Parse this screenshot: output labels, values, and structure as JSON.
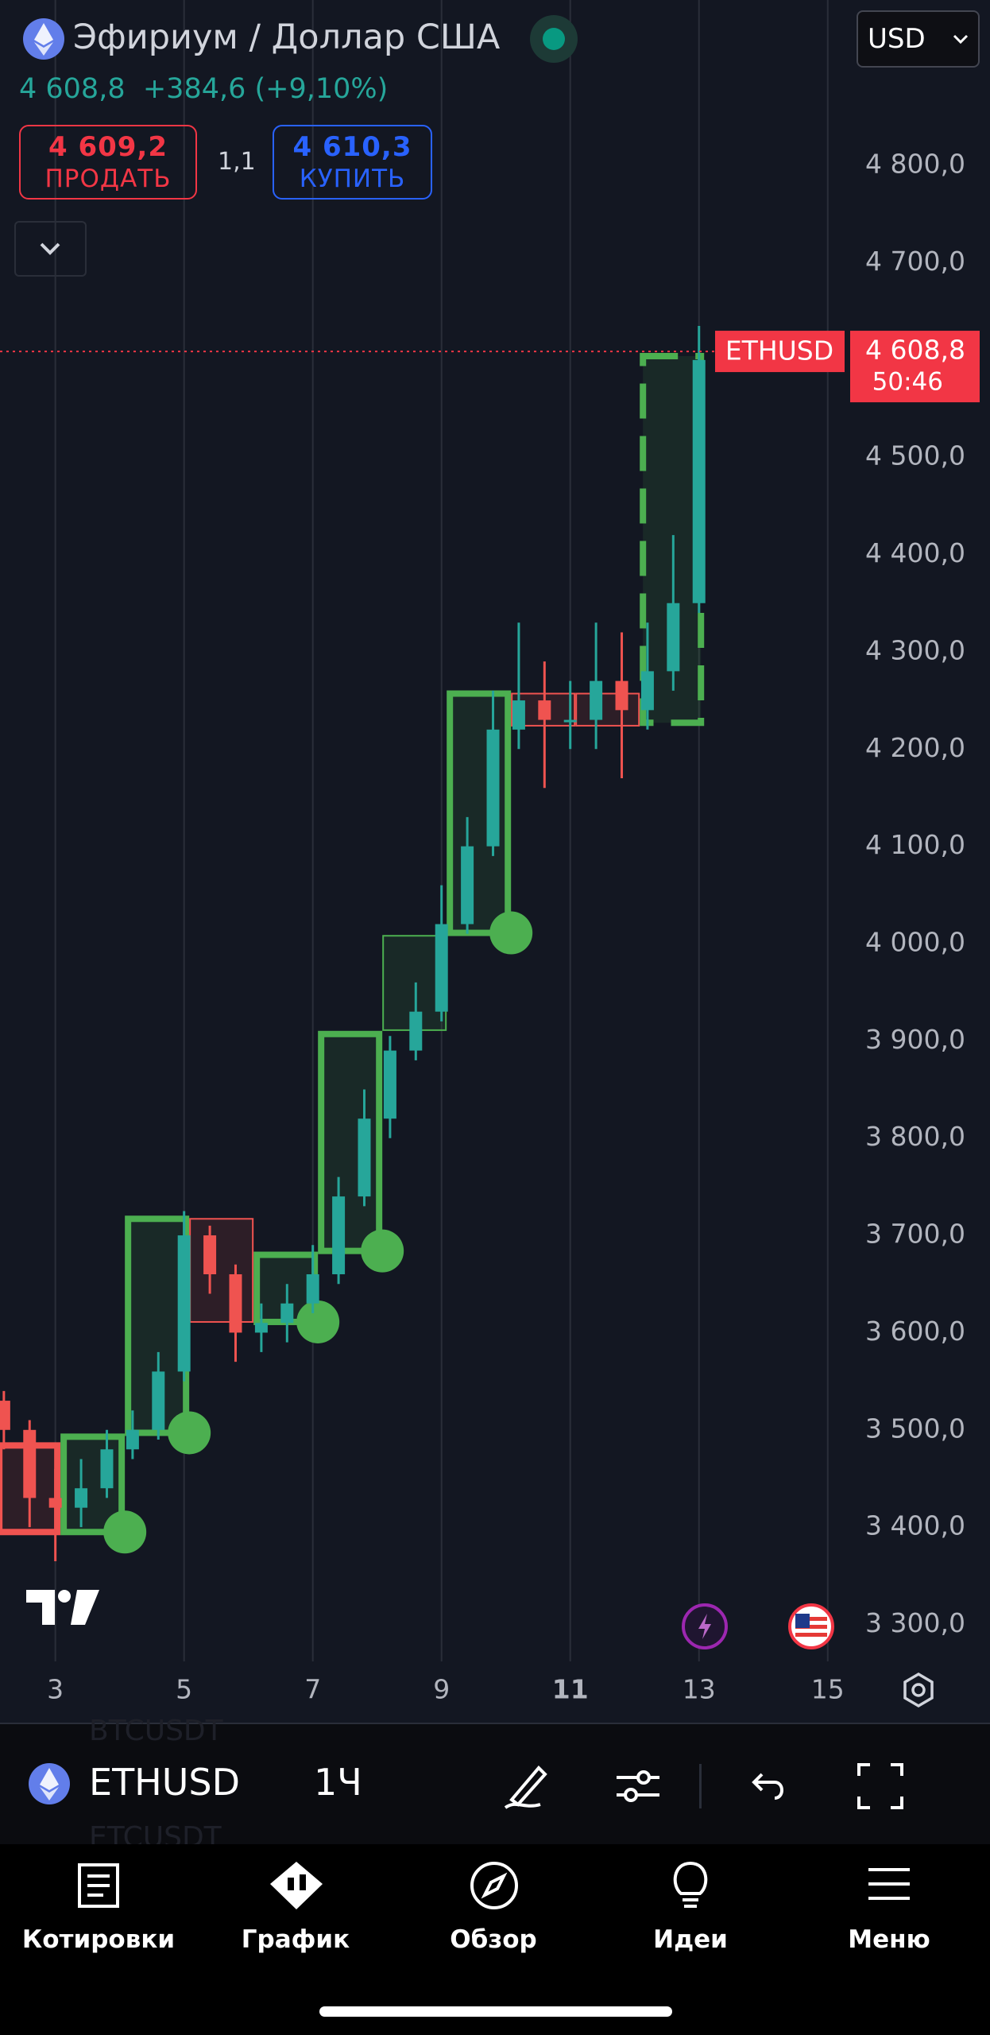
{
  "header": {
    "title": "Эфириум / Доллар США",
    "currency": "USD",
    "price": "4 608,8",
    "change": "+384,6 (+9,10%)",
    "sell_price": "4 609,2",
    "sell_label": "ПРОДАТЬ",
    "spread": "1,1",
    "buy_price": "4 610,3",
    "buy_label": "КУПИТЬ"
  },
  "chart_data": {
    "type": "candlestick",
    "up_color": "#26a69a",
    "down_color": "#ef5350",
    "grid": "x",
    "xlim": [
      2.14,
      15.25
    ],
    "xticks": [
      3,
      5,
      7,
      9,
      11,
      13,
      15
    ],
    "ylim": [
      3262,
      4890
    ],
    "yticks": [
      {
        "value": 3300,
        "label": "3 300,0"
      },
      {
        "value": 3400,
        "label": "3 400,0"
      },
      {
        "value": 3500,
        "label": "3 500,0"
      },
      {
        "value": 3600,
        "label": "3 600,0"
      },
      {
        "value": 3700,
        "label": "3 700,0"
      },
      {
        "value": 3800,
        "label": "3 800,0"
      },
      {
        "value": 3900,
        "label": "3 900,0"
      },
      {
        "value": 4000,
        "label": "4 000,0"
      },
      {
        "value": 4100,
        "label": "4 100,0"
      },
      {
        "value": 4200,
        "label": "4 200,0"
      },
      {
        "value": 4300,
        "label": "4 300,0"
      },
      {
        "value": 4400,
        "label": "4 400,0"
      },
      {
        "value": 4500,
        "label": "4 500,0"
      },
      {
        "value": 4600,
        "label": "4 600,0"
      },
      {
        "value": 4700,
        "label": "4 700,0"
      },
      {
        "value": 4800,
        "label": "4 800,0"
      }
    ],
    "candles": [
      {
        "x": 2.2,
        "open": 3530,
        "high": 3540,
        "low": 3480,
        "close": 3500
      },
      {
        "x": 2.6,
        "open": 3500,
        "high": 3510,
        "low": 3400,
        "close": 3430
      },
      {
        "x": 3.0,
        "open": 3430,
        "high": 3460,
        "low": 3365,
        "close": 3420
      },
      {
        "x": 3.4,
        "open": 3420,
        "high": 3470,
        "low": 3400,
        "close": 3440
      },
      {
        "x": 3.8,
        "open": 3440,
        "high": 3500,
        "low": 3430,
        "close": 3480
      },
      {
        "x": 4.2,
        "open": 3480,
        "high": 3520,
        "low": 3470,
        "close": 3500
      },
      {
        "x": 4.6,
        "open": 3500,
        "high": 3580,
        "low": 3490,
        "close": 3560
      },
      {
        "x": 5.0,
        "open": 3560,
        "high": 3725,
        "low": 3550,
        "close": 3700
      },
      {
        "x": 5.4,
        "open": 3700,
        "high": 3710,
        "low": 3640,
        "close": 3660
      },
      {
        "x": 5.8,
        "open": 3660,
        "high": 3670,
        "low": 3570,
        "close": 3600
      },
      {
        "x": 6.2,
        "open": 3600,
        "high": 3630,
        "low": 3580,
        "close": 3610
      },
      {
        "x": 6.6,
        "open": 3610,
        "high": 3650,
        "low": 3590,
        "close": 3630
      },
      {
        "x": 7.0,
        "open": 3630,
        "high": 3690,
        "low": 3620,
        "close": 3660
      },
      {
        "x": 7.4,
        "open": 3660,
        "high": 3760,
        "low": 3650,
        "close": 3740
      },
      {
        "x": 7.8,
        "open": 3740,
        "high": 3850,
        "low": 3730,
        "close": 3820
      },
      {
        "x": 8.2,
        "open": 3820,
        "high": 3905,
        "low": 3800,
        "close": 3890
      },
      {
        "x": 8.6,
        "open": 3890,
        "high": 3960,
        "low": 3880,
        "close": 3930
      },
      {
        "x": 9.0,
        "open": 3930,
        "high": 4060,
        "low": 3920,
        "close": 4020
      },
      {
        "x": 9.4,
        "open": 4020,
        "high": 4130,
        "low": 4010,
        "close": 4100
      },
      {
        "x": 9.8,
        "open": 4100,
        "high": 4260,
        "low": 4090,
        "close": 4220
      },
      {
        "x": 10.2,
        "open": 4220,
        "high": 4330,
        "low": 4200,
        "close": 4250
      },
      {
        "x": 10.6,
        "open": 4250,
        "high": 4290,
        "low": 4160,
        "close": 4230
      },
      {
        "x": 11.0,
        "open": 4230,
        "high": 4270,
        "low": 4200,
        "close": 4230
      },
      {
        "x": 11.4,
        "open": 4230,
        "high": 4330,
        "low": 4200,
        "close": 4270
      },
      {
        "x": 11.8,
        "open": 4270,
        "high": 4320,
        "low": 4170,
        "close": 4240
      },
      {
        "x": 12.2,
        "open": 4240,
        "high": 4330,
        "low": 4220,
        "close": 4280
      },
      {
        "x": 12.6,
        "open": 4280,
        "high": 4420,
        "low": 4260,
        "close": 4350
      },
      {
        "x": 13.0,
        "open": 4350,
        "high": 4635,
        "low": 4340,
        "close": 4600
      }
    ],
    "boxes": [
      {
        "x0": 2.08,
        "x1": 3.08,
        "low": 3395,
        "high": 3484,
        "color": "#f05350",
        "width": 8,
        "marker": false,
        "dashed": false
      },
      {
        "x0": 3.08,
        "x1": 4.08,
        "low": 3395,
        "high": 3493,
        "color": "#4caf50",
        "width": 8,
        "marker": true,
        "dashed": false
      },
      {
        "x0": 4.08,
        "x1": 5.08,
        "low": 3497,
        "high": 3717,
        "color": "#4caf50",
        "width": 8,
        "marker": true,
        "dashed": false
      },
      {
        "x0": 5.08,
        "x1": 6.08,
        "low": 3611,
        "high": 3717,
        "color": "#f05350",
        "width": 2,
        "marker": false,
        "dashed": false
      },
      {
        "x0": 6.08,
        "x1": 7.08,
        "low": 3611,
        "high": 3680,
        "color": "#4caf50",
        "width": 8,
        "marker": true,
        "dashed": false
      },
      {
        "x0": 7.08,
        "x1": 8.08,
        "low": 3684,
        "high": 3907,
        "color": "#4caf50",
        "width": 8,
        "marker": true,
        "dashed": false
      },
      {
        "x0": 8.08,
        "x1": 9.08,
        "low": 3911,
        "high": 4008,
        "color": "#4caf50",
        "width": 2,
        "marker": false,
        "dashed": false
      },
      {
        "x0": 9.08,
        "x1": 10.08,
        "low": 4011,
        "high": 4257,
        "color": "#4caf50",
        "width": 8,
        "marker": true,
        "dashed": false
      },
      {
        "x0": 10.08,
        "x1": 11.08,
        "low": 4224,
        "high": 4257,
        "color": "#f05350",
        "width": 2,
        "marker": false,
        "dashed": false
      },
      {
        "x0": 11.08,
        "x1": 12.08,
        "low": 4224,
        "high": 4257,
        "color": "#f05350",
        "width": 2,
        "marker": false,
        "dashed": false
      },
      {
        "x0": 12.08,
        "x1": 13.08,
        "low": 4227,
        "high": 4604,
        "color": "#4caf50",
        "width": 8,
        "marker": false,
        "dashed": true
      }
    ],
    "last": {
      "symbol": "ETHUSD",
      "value": 4608.8,
      "value_label": "4 608,8",
      "countdown": "50:46",
      "color": "#f23645"
    }
  },
  "toolbar": {
    "symbol": "ETHUSD",
    "interval": "1Ч",
    "ghost_1": "BTCUSDT",
    "ghost_2": "ETCUSDT"
  },
  "nav": {
    "items": [
      "Котировки",
      "График",
      "Обзор",
      "Идеи",
      "Меню"
    ]
  }
}
